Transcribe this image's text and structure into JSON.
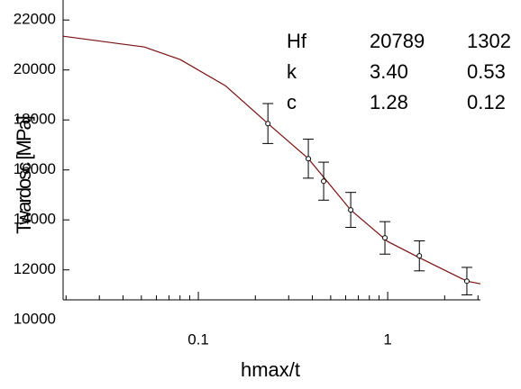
{
  "chart_data": {
    "type": "scatter",
    "xlabel": "hmax/t",
    "ylabel": "Twardosc [MPa]",
    "xscale": "log",
    "xlim": [
      0.0193,
      3.09
    ],
    "xticks": [
      0.1,
      1
    ],
    "ylim": [
      10800,
      22800
    ],
    "yticks": [
      10000,
      12000,
      14000,
      16000,
      18000,
      20000,
      22000
    ],
    "series": [
      {
        "x": [
          0.233,
          0.381,
          0.459,
          0.638,
          0.967,
          1.47,
          2.62
        ],
        "values": [
          17856,
          16450,
          15550,
          14400,
          13280,
          12560,
          11550
        ],
        "errors": [
          800,
          780,
          760,
          700,
          650,
          600,
          550
        ],
        "color": "#000000"
      },
      {
        "x": [
          0.0193,
          0.0518,
          0.0803,
          0.139,
          0.233,
          0.381,
          0.638,
          1.0,
          1.47,
          2.62,
          3.09
        ],
        "values": [
          21351,
          20919,
          20414,
          19369,
          17856,
          16450,
          14396,
          13135,
          12486,
          11550,
          11441
        ],
        "color": "#7a1010"
      }
    ],
    "annotation_table": [
      [
        "Hf",
        "20789",
        "1302"
      ],
      [
        "k",
        "3.40",
        "0.53"
      ],
      [
        "c",
        "1.28",
        "0.12"
      ]
    ]
  }
}
